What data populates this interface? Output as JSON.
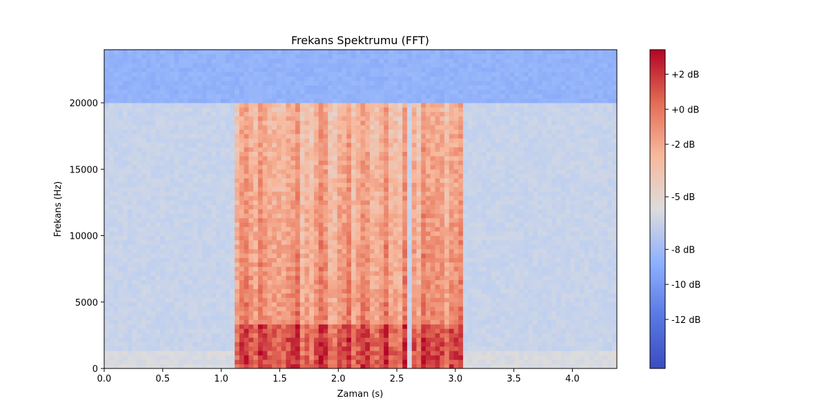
{
  "chart_data": {
    "type": "heatmap",
    "title": "Frekans Spektrumu (FFT)",
    "xlabel": "Zaman (s)",
    "ylabel": "Frekans (Hz)",
    "xlim": [
      0.0,
      4.38
    ],
    "ylim": [
      0,
      24000
    ],
    "x_ticks": [
      0.0,
      0.5,
      1.0,
      1.5,
      2.0,
      2.5,
      3.0,
      3.5,
      4.0
    ],
    "x_tick_labels": [
      "0.0",
      "0.5",
      "1.0",
      "1.5",
      "2.0",
      "2.5",
      "3.0",
      "3.5",
      "4.0"
    ],
    "y_ticks": [
      0,
      5000,
      10000,
      15000,
      20000
    ],
    "y_tick_labels": [
      "0",
      "5000",
      "10000",
      "15000",
      "20000"
    ],
    "colormap": "coolwarm",
    "colorbar": {
      "range_db": [
        -14.8,
        3.4
      ],
      "ticks": [
        2,
        0,
        -2,
        -5,
        -8,
        -10,
        -12
      ],
      "tick_labels": [
        "+2 dB",
        "+0 dB",
        "-2 dB",
        "-5 dB",
        "-8 dB",
        "-10 dB",
        "-12 dB"
      ],
      "colors": [
        "#3b4cc0",
        "#7396f5",
        "#aac7fd",
        "#dddcdc",
        "#f7b89c",
        "#e7745b",
        "#b40426"
      ]
    },
    "regions": [
      {
        "description": "noise floor above cutoff",
        "freq_range_hz": [
          20000,
          24000
        ],
        "time_range_s": [
          0.0,
          4.38
        ],
        "level_db": -10
      },
      {
        "description": "background",
        "freq_range_hz": [
          0,
          20000
        ],
        "time_range_s": [
          0.0,
          4.38
        ],
        "level_db": -7
      },
      {
        "description": "speech segment 1",
        "freq_range_hz": [
          0,
          20000
        ],
        "time_range_s": [
          1.1,
          2.6
        ],
        "level_db": -1
      },
      {
        "description": "speech segment 2",
        "freq_range_hz": [
          0,
          20000
        ],
        "time_range_s": [
          2.63,
          3.05
        ],
        "level_db": -1
      }
    ]
  }
}
